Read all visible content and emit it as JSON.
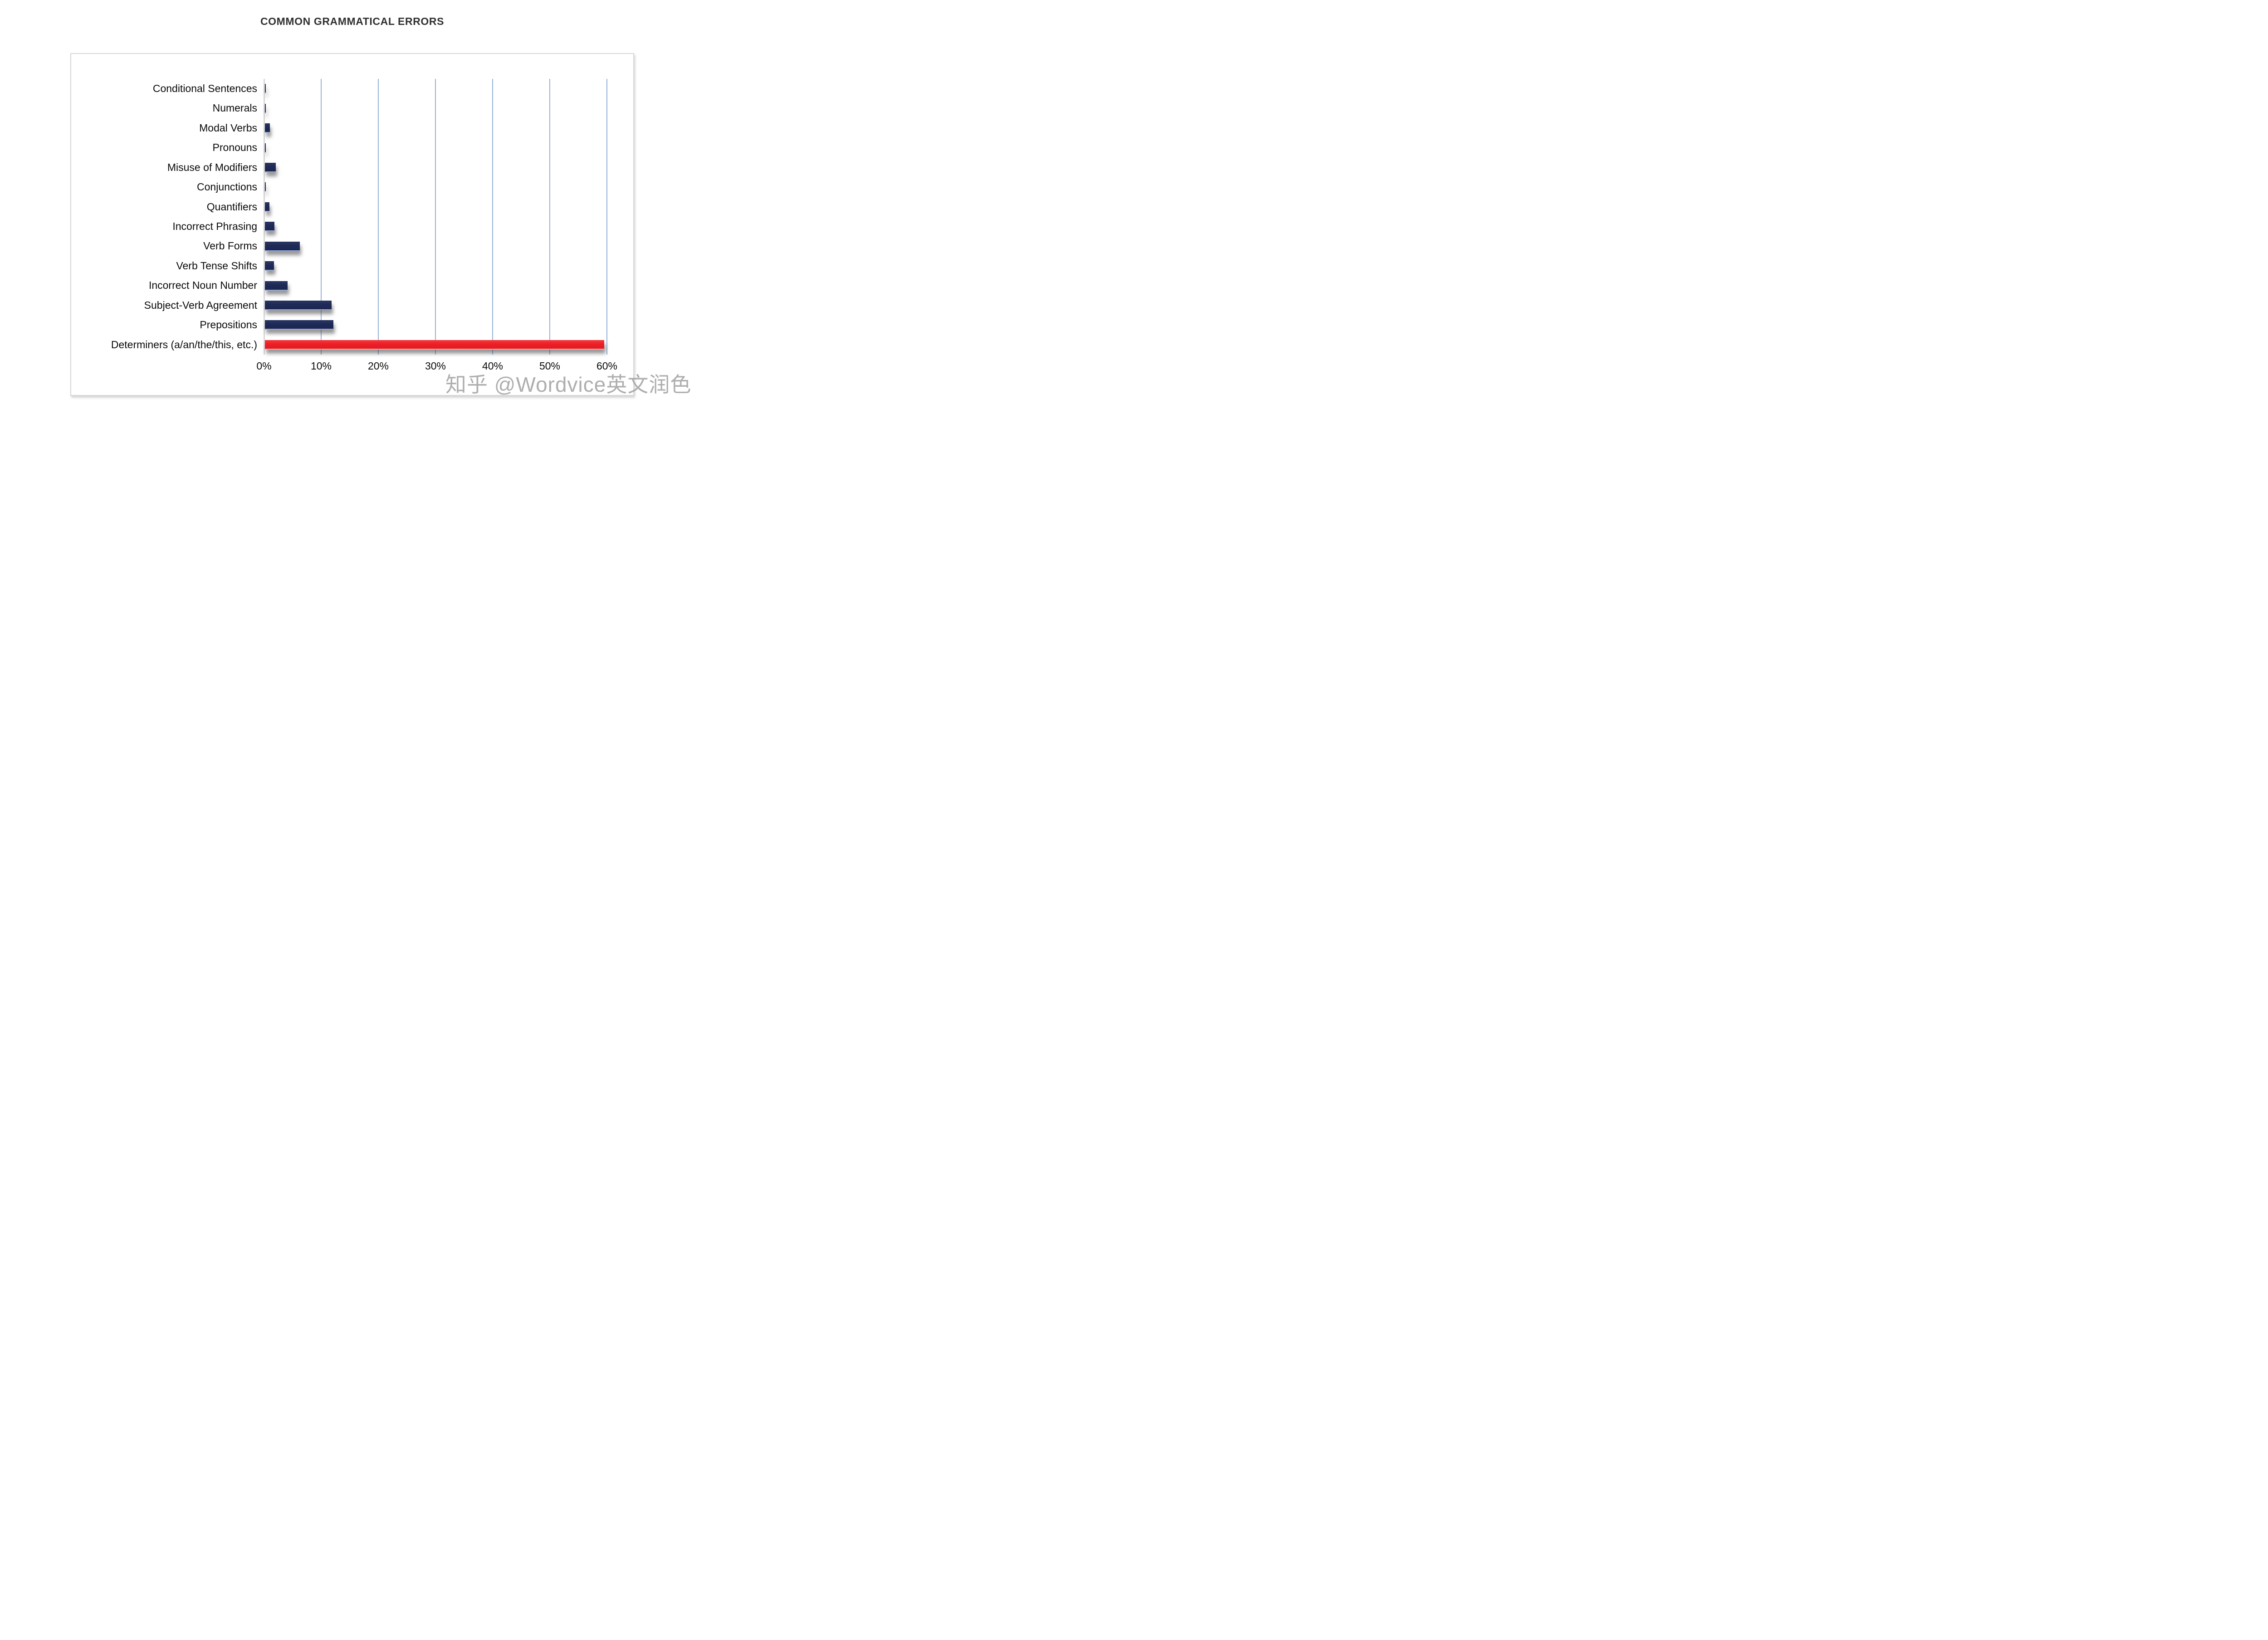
{
  "title": "COMMON GRAMMATICAL ERRORS",
  "watermark": {
    "text": "知乎 @Wordvice英文润色"
  },
  "chart_data": {
    "type": "bar",
    "orientation": "horizontal",
    "title": "COMMON GRAMMATICAL ERRORS",
    "categories": [
      "Conditional Sentences",
      "Numerals",
      "Modal Verbs",
      "Pronouns",
      "Misuse of Modifiers",
      "Conjunctions",
      "Quantifiers",
      "Incorrect Phrasing",
      "Verb Forms",
      "Verb Tense Shifts",
      "Incorrect Noun Number",
      "Subject-Verb Agreement",
      "Prepositions",
      "Determiners (a/an/the/this, etc.)"
    ],
    "values": [
      0.1,
      0.1,
      0.9,
      0.1,
      1.9,
      0.1,
      0.8,
      1.7,
      6.1,
      1.6,
      4.0,
      11.7,
      12.0,
      59.4
    ],
    "unit": "percent",
    "xlabel": "",
    "ylabel": "",
    "x_axis": {
      "ticks": [
        "0%",
        "10%",
        "20%",
        "30%",
        "40%",
        "50%",
        "60%"
      ],
      "range": [
        0,
        60
      ],
      "gridlines": true
    },
    "legend": "none",
    "highlight_index": 13,
    "colors": {
      "bar": "#1F2A57",
      "highlight_bar": "#EE1F26",
      "gridline": "#95B3D7",
      "axis_line": "#D9D9D9",
      "panel_border": "#D9D9D9",
      "title_text": "#303030",
      "label_text": "#0A0A0A",
      "watermark_text": "#9B9B9B"
    }
  }
}
